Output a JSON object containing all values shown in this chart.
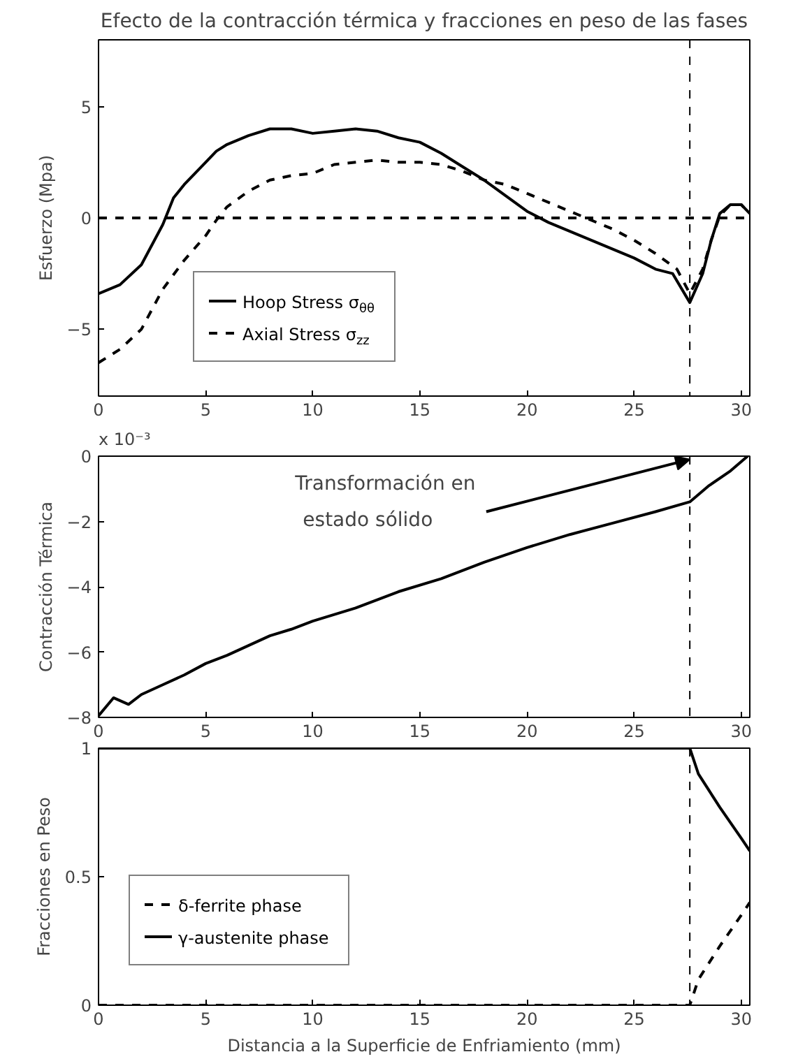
{
  "chart_data": [
    {
      "type": "line",
      "title": "Efecto de la contracción térmica y fracciones en peso de las fases",
      "ylabel": "Esfuerzo (Mpa)",
      "xlim": [
        0,
        30.4
      ],
      "xticks": [
        0,
        5,
        10,
        15,
        20,
        25,
        30
      ],
      "ylim": [
        -8,
        8
      ],
      "yticks": [
        -5,
        0,
        5
      ],
      "grid": false,
      "legend": "bottom left",
      "ref_lines": [
        {
          "axis": "x",
          "value": 27.6,
          "line_style": "dashed"
        },
        {
          "axis": "y",
          "value": 0,
          "line_style": "dashed"
        }
      ],
      "series": [
        {
          "name": "Hoop Stress σ$_{θθ}$",
          "color": "#000000",
          "line_style": "solid",
          "x": [
            0,
            1,
            2,
            3,
            3.5,
            4,
            5,
            5.5,
            6,
            7,
            8,
            9,
            10,
            11,
            12,
            13,
            14,
            15,
            16,
            17,
            18,
            19,
            20,
            21,
            22,
            23,
            24,
            25,
            26,
            26.8,
            27.6,
            28.2,
            28.6,
            29,
            29.5,
            30,
            30.4
          ],
          "values": [
            -3.4,
            -3.0,
            -2.1,
            -0.3,
            0.9,
            1.5,
            2.5,
            3.0,
            3.3,
            3.7,
            4.0,
            4.0,
            3.8,
            3.9,
            4.0,
            3.9,
            3.6,
            3.4,
            2.9,
            2.3,
            1.7,
            1.0,
            0.3,
            -0.2,
            -0.6,
            -1.0,
            -1.4,
            -1.8,
            -2.3,
            -2.5,
            -3.8,
            -2.5,
            -1.0,
            0.2,
            0.6,
            0.6,
            0.2
          ]
        },
        {
          "name": "Axial Stress σ$_{zz}$",
          "color": "#000000",
          "line_style": "dashed",
          "x": [
            0,
            1,
            2,
            3,
            4,
            5,
            5.5,
            6,
            7,
            8,
            9,
            10,
            11,
            12,
            13,
            14,
            15,
            16,
            17,
            18,
            19,
            20,
            21,
            22,
            23,
            24,
            25,
            26,
            27,
            27.6,
            28.2,
            28.6,
            29,
            29.5,
            30,
            30.4
          ],
          "values": [
            -6.5,
            -5.9,
            -5.0,
            -3.2,
            -1.9,
            -0.8,
            -0.1,
            0.5,
            1.2,
            1.7,
            1.9,
            2.0,
            2.4,
            2.5,
            2.6,
            2.5,
            2.5,
            2.4,
            2.1,
            1.7,
            1.5,
            1.1,
            0.7,
            0.3,
            -0.1,
            -0.5,
            -1.0,
            -1.6,
            -2.3,
            -3.4,
            -2.3,
            -1.0,
            0.1,
            0.6,
            0.6,
            0.2
          ]
        }
      ]
    },
    {
      "type": "line",
      "ylabel": "Contracción Térmica",
      "xlim": [
        0,
        30.4
      ],
      "xticks": [
        0,
        5,
        10,
        15,
        20,
        25,
        30
      ],
      "ylim": [
        -8,
        0
      ],
      "yticks": [
        -8,
        -6,
        -4,
        -2,
        0
      ],
      "grid": false,
      "annotations": [
        "x 10⁻³",
        {
          "text": "Transformación en estado sólido",
          "x": 27.6,
          "y": 0
        }
      ],
      "ref_lines": [
        {
          "axis": "x",
          "value": 27.6,
          "line_style": "dashed"
        }
      ],
      "series": [
        {
          "color": "#000000",
          "line_style": "solid",
          "x": [
            0,
            0.7,
            1.4,
            2,
            3,
            4,
            5,
            6,
            7,
            8,
            9,
            10,
            12,
            14,
            16,
            18,
            20,
            22,
            24,
            26,
            27.6,
            28.5,
            29.5,
            30.3
          ],
          "values": [
            -7.95,
            -7.4,
            -7.6,
            -7.3,
            -7.0,
            -6.7,
            -6.35,
            -6.1,
            -5.8,
            -5.5,
            -5.3,
            -5.05,
            -4.65,
            -4.15,
            -3.75,
            -3.25,
            -2.8,
            -2.4,
            -2.05,
            -1.7,
            -1.4,
            -0.9,
            -0.45,
            0
          ]
        }
      ]
    },
    {
      "type": "line",
      "xlabel": "Distancia a la Superficie de Enfriamiento (mm)",
      "ylabel": "Fracciones en Peso",
      "xlim": [
        0,
        30.4
      ],
      "xticks": [
        0,
        5,
        10,
        15,
        20,
        25,
        30
      ],
      "ylim": [
        0,
        1
      ],
      "yticks": [
        0,
        0.5,
        1
      ],
      "grid": false,
      "legend": "bottom left",
      "ref_lines": [
        {
          "axis": "x",
          "value": 27.6,
          "line_style": "dashed"
        }
      ],
      "series": [
        {
          "name": "δ-ferrite phase",
          "color": "#000000",
          "line_style": "dashed",
          "x": [
            0,
            27.6,
            28,
            29,
            30,
            30.4
          ],
          "values": [
            0,
            0,
            0.1,
            0.23,
            0.35,
            0.4
          ]
        },
        {
          "name": "γ-austenite phase",
          "color": "#000000",
          "line_style": "solid",
          "x": [
            0,
            27.6,
            28,
            29,
            30,
            30.4
          ],
          "values": [
            1,
            1,
            0.9,
            0.77,
            0.65,
            0.6
          ]
        }
      ]
    }
  ]
}
